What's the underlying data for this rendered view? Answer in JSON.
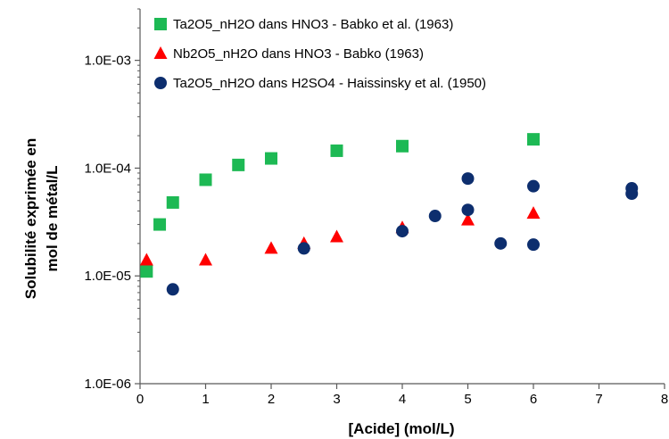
{
  "chart_data": {
    "type": "scatter",
    "xlabel": "[Acide] (mol/L)",
    "ylabel_lines": [
      "Solubilité exprimée en",
      "mol de métal/L"
    ],
    "xlim": [
      0,
      8
    ],
    "ylim": [
      1e-06,
      0.003
    ],
    "yscale": "log",
    "x_ticks": [
      0,
      1,
      2,
      3,
      4,
      5,
      6,
      7,
      8
    ],
    "x_tick_labels": [
      "0",
      "1",
      "2",
      "3",
      "4",
      "5",
      "6",
      "7",
      "8"
    ],
    "y_ticks": [
      1e-06,
      1e-05,
      0.0001,
      0.001
    ],
    "y_tick_labels": [
      "1.0E-06",
      "1.0E-05",
      "1.0E-04",
      "1.0E-03"
    ],
    "grid": false,
    "legend_position": "top-left",
    "series": [
      {
        "name": "Ta2O5_nH2O dans HNO3 - Babko et al. (1963)",
        "marker": "square",
        "color": "#1DB954",
        "points": [
          [
            0.1,
            1.1e-05
          ],
          [
            0.3,
            3e-05
          ],
          [
            0.5,
            4.8e-05
          ],
          [
            1.0,
            7.8e-05
          ],
          [
            1.5,
            0.000107
          ],
          [
            2.0,
            0.000123
          ],
          [
            3.0,
            0.000145
          ],
          [
            4.0,
            0.00016
          ],
          [
            6.0,
            0.000185
          ]
        ]
      },
      {
        "name": "Nb2O5_nH2O dans HNO3 - Babko (1963)",
        "marker": "triangle",
        "color": "#FF0000",
        "points": [
          [
            0.1,
            1.4e-05
          ],
          [
            1.0,
            1.4e-05
          ],
          [
            2.0,
            1.8e-05
          ],
          [
            2.5,
            2e-05
          ],
          [
            3.0,
            2.3e-05
          ],
          [
            4.0,
            2.8e-05
          ],
          [
            5.0,
            3.3e-05
          ],
          [
            6.0,
            3.8e-05
          ]
        ]
      },
      {
        "name": "Ta2O5_nH2O dans H2SO4 - Haissinsky et al. (1950)",
        "marker": "circle",
        "color": "#0D2E6E",
        "points": [
          [
            0.5,
            7.5e-06
          ],
          [
            2.5,
            1.8e-05
          ],
          [
            4.0,
            2.6e-05
          ],
          [
            4.5,
            3.6e-05
          ],
          [
            5.0,
            8e-05
          ],
          [
            5.0,
            4.1e-05
          ],
          [
            5.5,
            2e-05
          ],
          [
            6.0,
            6.8e-05
          ],
          [
            6.0,
            1.95e-05
          ],
          [
            7.5,
            6.5e-05
          ],
          [
            7.5,
            5.8e-05
          ]
        ]
      }
    ]
  }
}
